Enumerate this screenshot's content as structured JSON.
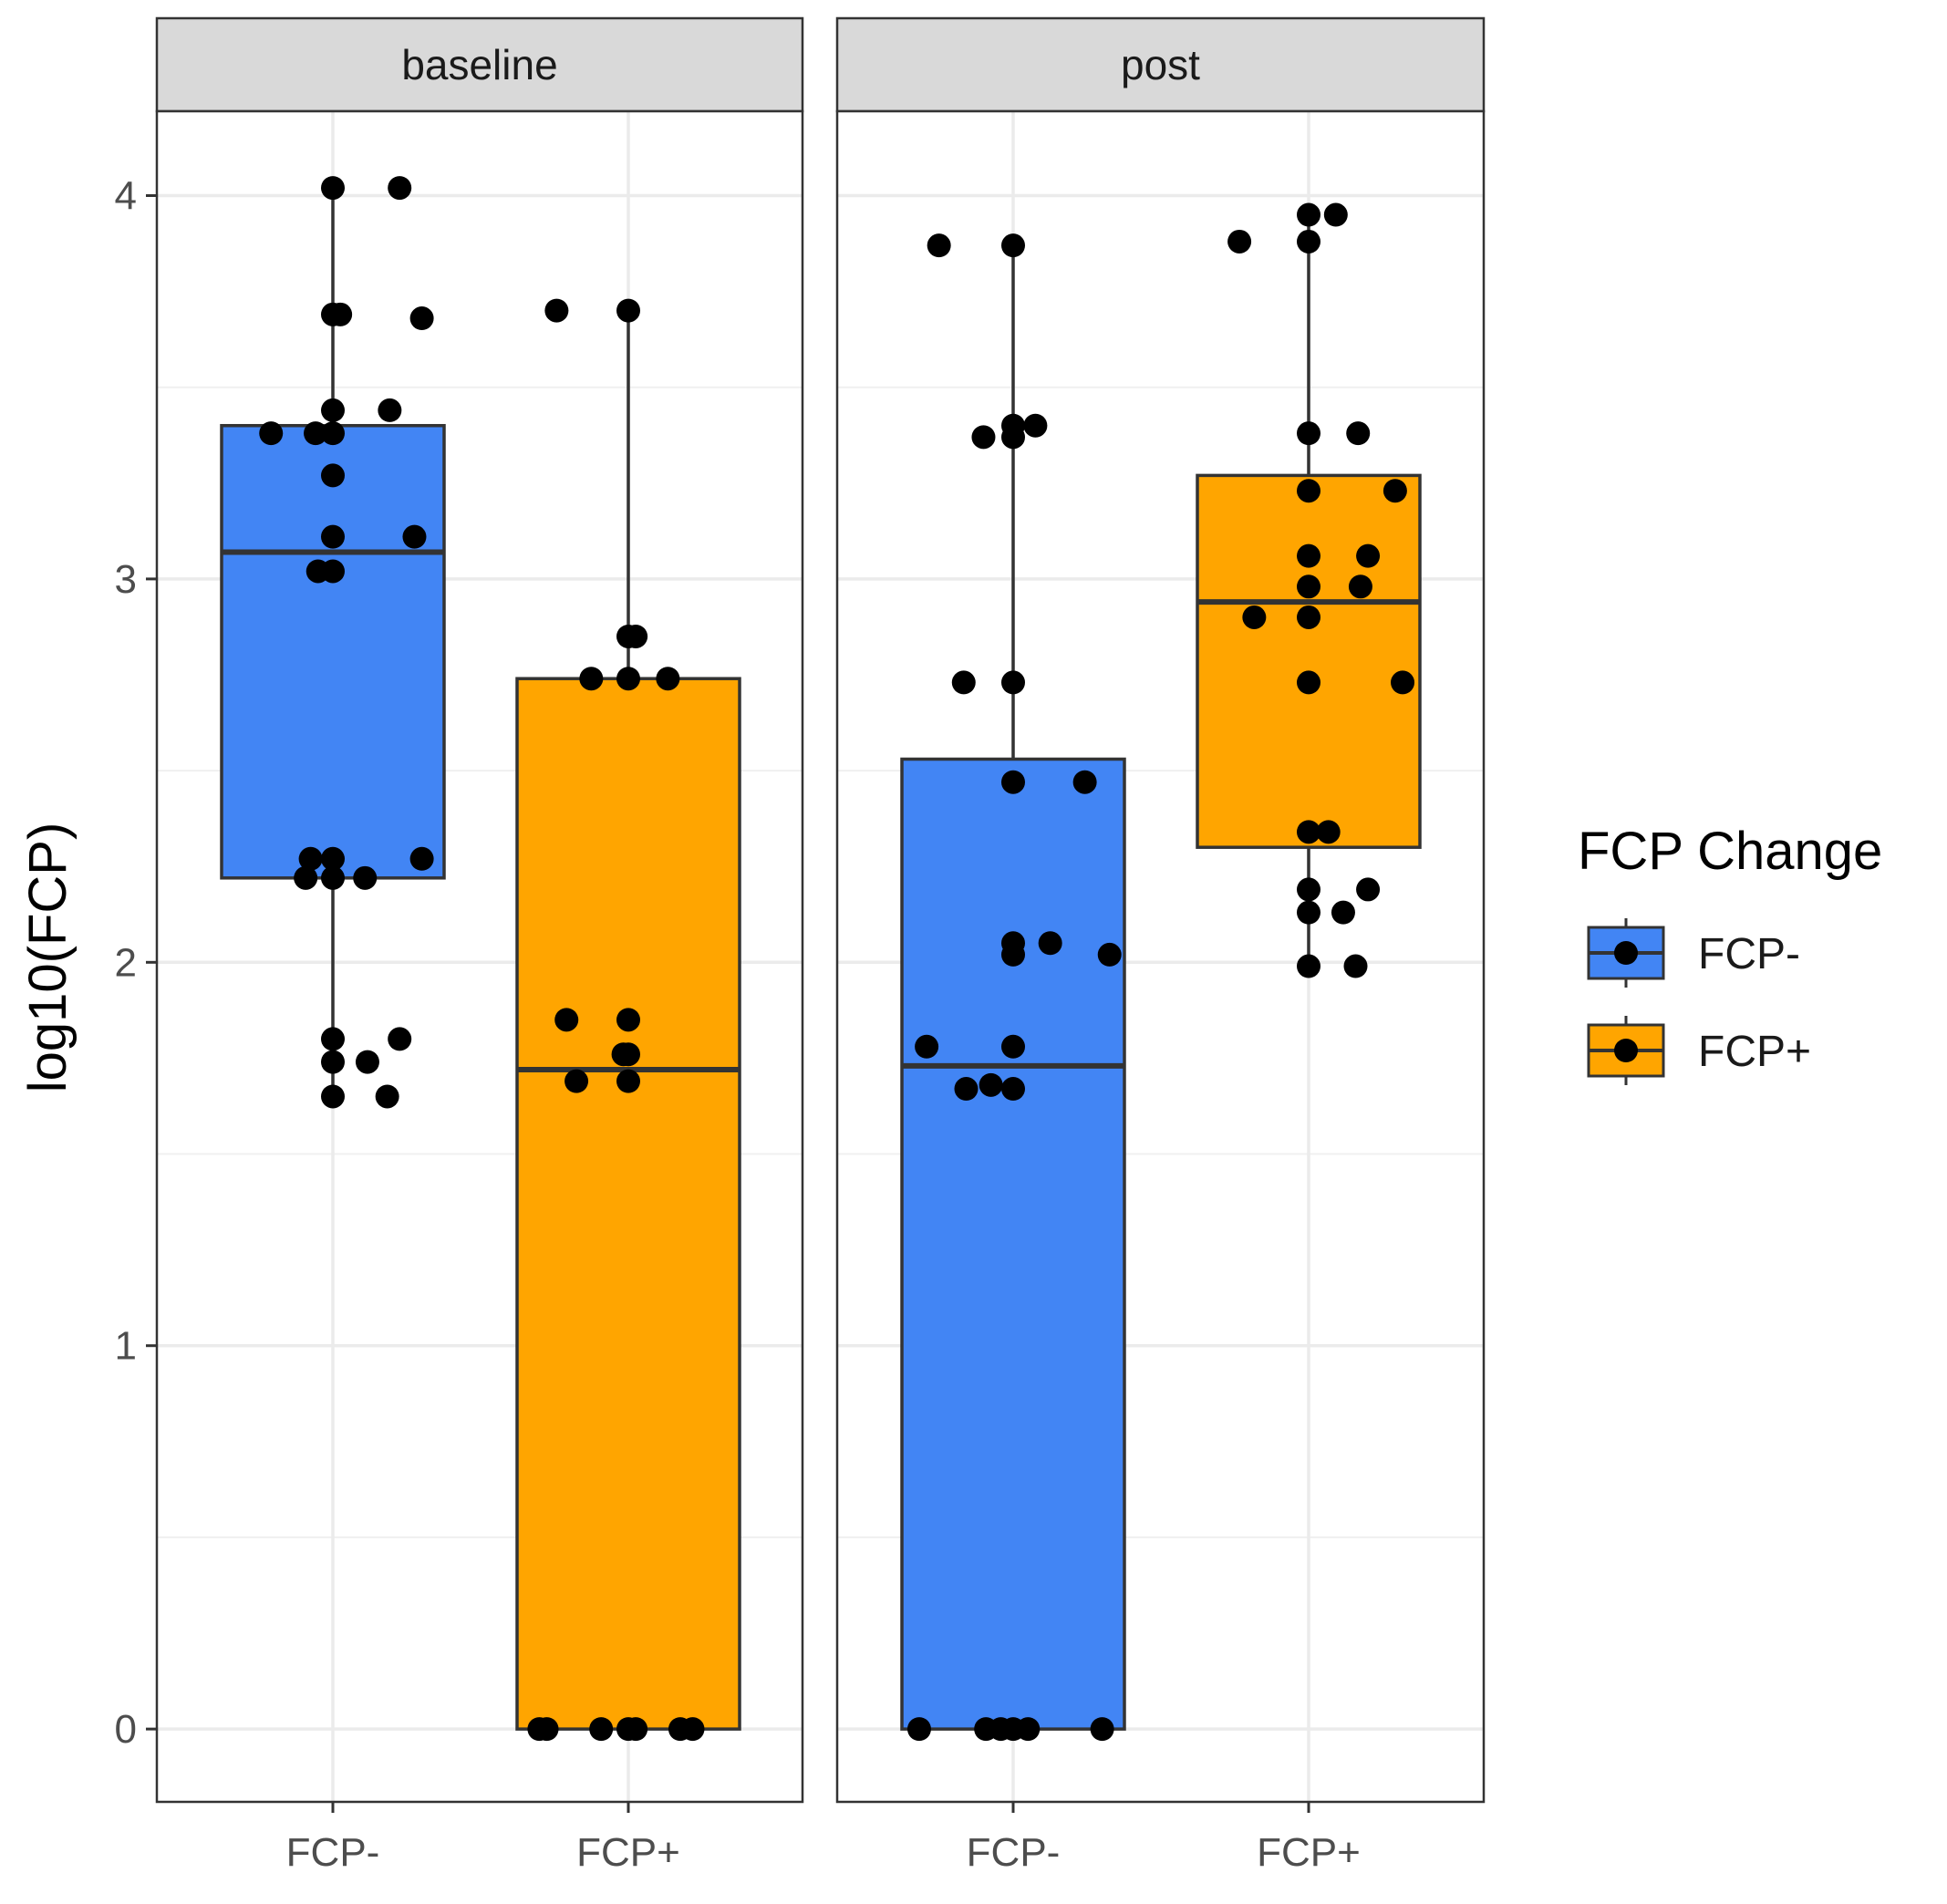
{
  "chart_data": {
    "type": "boxplot",
    "ylabel": "log10(FCP)",
    "xlabel": "",
    "ylim": [
      -0.19,
      4.22
    ],
    "yticks": [
      0,
      1,
      2,
      3,
      4
    ],
    "ytick_labels": [
      "0",
      "1",
      "2",
      "3",
      "4"
    ],
    "categories": [
      "FCP-",
      "FCP+"
    ],
    "panels": [
      {
        "title": "baseline",
        "boxes": [
          {
            "category": "FCP-",
            "color": "#4285f4",
            "q1": 2.22,
            "median": 3.07,
            "q3": 3.4,
            "whisker_low": 1.65,
            "whisker_high": 4.02,
            "points": [
              [
                0.0,
                4.02
              ],
              [
                0.27,
                4.02
              ],
              [
                0.0,
                3.69
              ],
              [
                0.03,
                3.69
              ],
              [
                0.36,
                3.68
              ],
              [
                0.0,
                3.44
              ],
              [
                0.23,
                3.44
              ],
              [
                -0.25,
                3.38
              ],
              [
                -0.07,
                3.38
              ],
              [
                0.0,
                3.38
              ],
              [
                0.0,
                3.27
              ],
              [
                0.0,
                3.11
              ],
              [
                0.33,
                3.11
              ],
              [
                -0.06,
                3.02
              ],
              [
                0.0,
                3.02
              ],
              [
                -0.09,
                2.27
              ],
              [
                0.0,
                2.27
              ],
              [
                0.36,
                2.27
              ],
              [
                -0.11,
                2.22
              ],
              [
                0.0,
                2.22
              ],
              [
                0.13,
                2.22
              ],
              [
                0.0,
                1.8
              ],
              [
                0.27,
                1.8
              ],
              [
                0.0,
                1.74
              ],
              [
                0.14,
                1.74
              ],
              [
                0.0,
                1.65
              ],
              [
                0.22,
                1.65
              ]
            ]
          },
          {
            "category": "FCP+",
            "color": "#ffa500",
            "q1": 0.0,
            "median": 1.72,
            "q3": 2.74,
            "whisker_low": 0.0,
            "whisker_high": 3.7,
            "points": [
              [
                -0.29,
                3.7
              ],
              [
                0.0,
                3.7
              ],
              [
                0.0,
                2.85
              ],
              [
                0.03,
                2.85
              ],
              [
                -0.15,
                2.74
              ],
              [
                0.0,
                2.74
              ],
              [
                0.16,
                2.74
              ],
              [
                -0.25,
                1.85
              ],
              [
                0.0,
                1.85
              ],
              [
                -0.02,
                1.76
              ],
              [
                0.0,
                1.76
              ],
              [
                -0.21,
                1.69
              ],
              [
                0.0,
                1.69
              ],
              [
                -0.36,
                0.0
              ],
              [
                -0.33,
                0.0
              ],
              [
                -0.11,
                0.0
              ],
              [
                0.0,
                0.0
              ],
              [
                0.03,
                0.0
              ],
              [
                0.21,
                0.0
              ],
              [
                0.26,
                0.0
              ]
            ]
          }
        ]
      },
      {
        "title": "post",
        "boxes": [
          {
            "category": "FCP-",
            "color": "#4285f4",
            "q1": 0.0,
            "median": 1.73,
            "q3": 2.53,
            "whisker_low": 0.0,
            "whisker_high": 3.87,
            "points": [
              [
                -0.3,
                3.87
              ],
              [
                0.0,
                3.87
              ],
              [
                0.0,
                3.4
              ],
              [
                0.09,
                3.4
              ],
              [
                -0.12,
                3.37
              ],
              [
                0.0,
                3.37
              ],
              [
                -0.2,
                2.73
              ],
              [
                0.0,
                2.73
              ],
              [
                0.0,
                2.47
              ],
              [
                0.29,
                2.47
              ],
              [
                0.0,
                2.05
              ],
              [
                0.15,
                2.05
              ],
              [
                0.0,
                2.02
              ],
              [
                0.39,
                2.02
              ],
              [
                -0.35,
                1.78
              ],
              [
                0.0,
                1.78
              ],
              [
                -0.19,
                1.67
              ],
              [
                -0.09,
                1.68
              ],
              [
                0.0,
                1.67
              ],
              [
                -0.38,
                0.0
              ],
              [
                -0.11,
                0.0
              ],
              [
                -0.05,
                0.0
              ],
              [
                0.0,
                0.0
              ],
              [
                0.06,
                0.0
              ],
              [
                0.36,
                0.0
              ]
            ]
          },
          {
            "category": "FCP+",
            "color": "#ffa500",
            "q1": 2.3,
            "median": 2.94,
            "q3": 3.27,
            "whisker_low": 2.0,
            "whisker_high": 3.95,
            "points": [
              [
                0.0,
                3.95
              ],
              [
                0.11,
                3.95
              ],
              [
                -0.28,
                3.88
              ],
              [
                0.0,
                3.88
              ],
              [
                0.0,
                3.38
              ],
              [
                0.2,
                3.38
              ],
              [
                0.0,
                3.23
              ],
              [
                0.35,
                3.23
              ],
              [
                0.0,
                3.06
              ],
              [
                0.24,
                3.06
              ],
              [
                0.0,
                2.98
              ],
              [
                0.21,
                2.98
              ],
              [
                -0.22,
                2.9
              ],
              [
                0.0,
                2.9
              ],
              [
                0.0,
                2.73
              ],
              [
                0.38,
                2.73
              ],
              [
                0.0,
                2.34
              ],
              [
                0.08,
                2.34
              ],
              [
                0.0,
                2.19
              ],
              [
                0.24,
                2.19
              ],
              [
                0.0,
                2.13
              ],
              [
                0.14,
                2.13
              ],
              [
                0.0,
                1.99
              ],
              [
                0.19,
                1.99
              ]
            ]
          }
        ]
      }
    ],
    "legend": {
      "title": "FCP Change",
      "position": "right",
      "entries": [
        {
          "label": "FCP-",
          "color": "#4285f4"
        },
        {
          "label": "FCP+",
          "color": "#ffa500"
        }
      ]
    }
  }
}
